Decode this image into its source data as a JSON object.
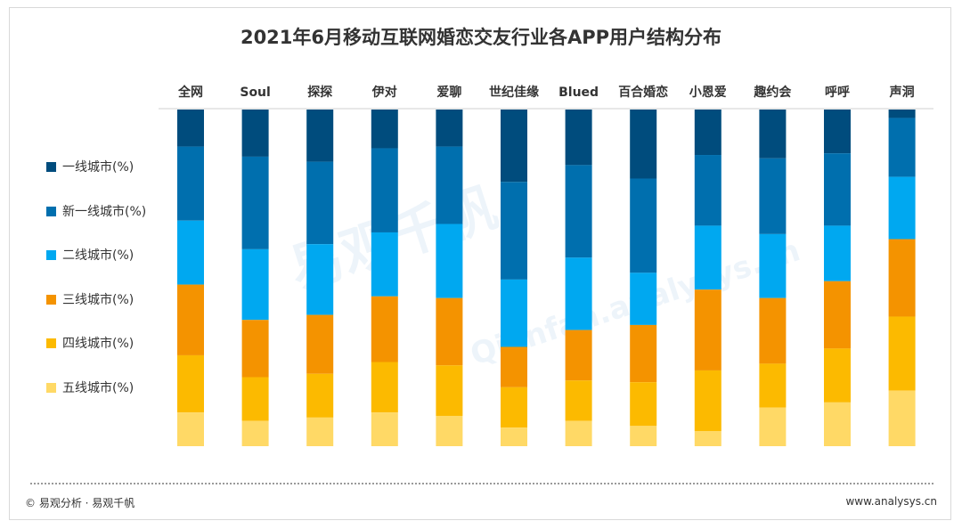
{
  "title": "2021年6月移动互联网婚恋交友行业各APP用户结构分布",
  "watermark": {
    "text": "易观千帆",
    "sub": "Qianfan.analysys.cn"
  },
  "footer": {
    "left": "© 易观分析 · 易观千帆",
    "right": "www.analysys.cn"
  },
  "chart_data": {
    "type": "bar",
    "stacked": true,
    "orientation": "vertical",
    "ylim": [
      0,
      100
    ],
    "categories": [
      "全网",
      "Soul",
      "探探",
      "伊对",
      "爱聊",
      "世纪佳缘",
      "Blued",
      "百合婚恋",
      "小恩爱",
      "趣约会",
      "呼呼",
      "声洞"
    ],
    "series": [
      {
        "name": "一线城市(%)",
        "color": "#004c7d",
        "values": [
          11.0,
          14.0,
          15.5,
          11.5,
          11.0,
          21.5,
          16.5,
          20.5,
          13.5,
          14.5,
          13.0,
          2.5
        ]
      },
      {
        "name": "新一线城市(%)",
        "color": "#006fae",
        "values": [
          22.0,
          27.5,
          24.5,
          25.0,
          23.0,
          29.0,
          27.5,
          28.0,
          21.0,
          22.5,
          21.5,
          17.5
        ]
      },
      {
        "name": "二线城市(%)",
        "color": "#00a8f0",
        "values": [
          19.0,
          21.0,
          21.0,
          19.0,
          22.0,
          20.0,
          21.5,
          15.5,
          19.0,
          19.0,
          16.5,
          18.5
        ]
      },
      {
        "name": "三线城市(%)",
        "color": "#f49300",
        "values": [
          21.0,
          17.0,
          17.5,
          19.5,
          20.0,
          12.0,
          15.0,
          17.0,
          24.0,
          19.5,
          20.0,
          23.0
        ]
      },
      {
        "name": "四线城市(%)",
        "color": "#fcba00",
        "values": [
          17.0,
          13.0,
          13.0,
          15.0,
          15.0,
          12.0,
          12.0,
          13.0,
          18.0,
          13.0,
          16.0,
          22.0
        ]
      },
      {
        "name": "五线城市(%)",
        "color": "#ffd966",
        "values": [
          10.0,
          7.5,
          8.5,
          10.0,
          9.0,
          5.5,
          7.5,
          6.0,
          4.5,
          11.5,
          13.0,
          16.5
        ]
      }
    ]
  }
}
